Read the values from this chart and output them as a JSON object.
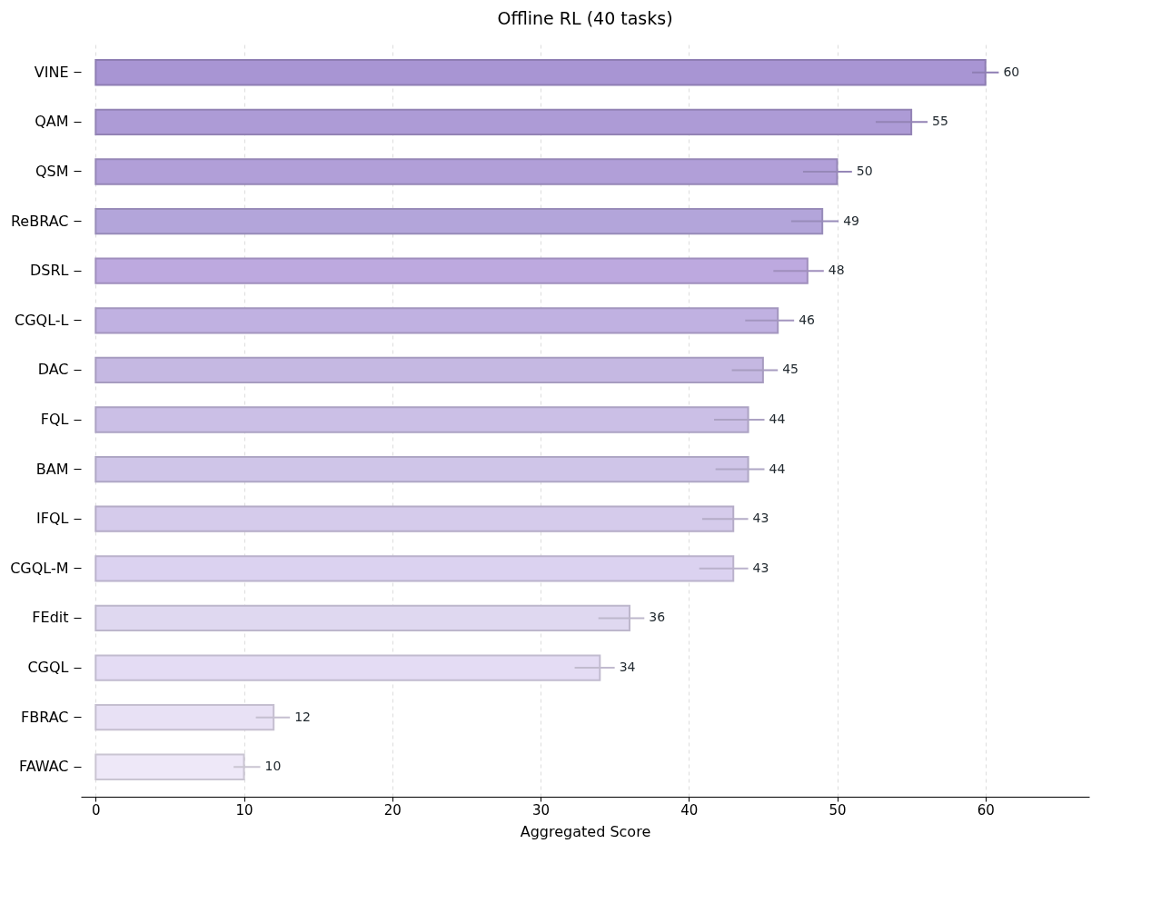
{
  "chart_data": {
    "type": "bar",
    "orientation": "horizontal",
    "title": "Offline RL (40 tasks)",
    "xlabel": "Aggregated Score",
    "categories": [
      "VINE",
      "QAM",
      "QSM",
      "ReBRAC",
      "DSRL",
      "CGQL-L",
      "DAC",
      "FQL",
      "BAM",
      "IFQL",
      "CGQL-M",
      "FEdit",
      "CGQL",
      "FBRAC",
      "FAWAC"
    ],
    "values": [
      60,
      55,
      50,
      49,
      48,
      46,
      45,
      44,
      44,
      43,
      43,
      36,
      34,
      12,
      10
    ],
    "errors": [
      [
        59.1,
        60.9
      ],
      [
        52.6,
        56.1
      ],
      [
        47.7,
        51.0
      ],
      [
        46.9,
        50.1
      ],
      [
        45.7,
        49.1
      ],
      [
        43.8,
        47.1
      ],
      [
        42.9,
        46.0
      ],
      [
        41.7,
        45.1
      ],
      [
        41.8,
        45.1
      ],
      [
        40.9,
        44.0
      ],
      [
        40.7,
        44.0
      ],
      [
        33.9,
        37.0
      ],
      [
        32.3,
        35.0
      ],
      [
        10.8,
        13.1
      ],
      [
        9.3,
        11.1
      ]
    ],
    "colors": [
      "#a895d3",
      "#ad9bd6",
      "#b19fd8",
      "#b3a5da",
      "#bda9df",
      "#c0b1e1",
      "#c5b8e2",
      "#cbbfe6",
      "#cfc5e8",
      "#d5cbeb",
      "#dbd2f0",
      "#dfd8f0",
      "#e4dcf4",
      "#e8e1f5",
      "#eee8f8"
    ],
    "xlim": [
      -1,
      67
    ],
    "xticks": [
      0,
      10,
      20,
      30,
      40,
      50,
      60
    ],
    "grid": "x",
    "data_labels": true
  }
}
